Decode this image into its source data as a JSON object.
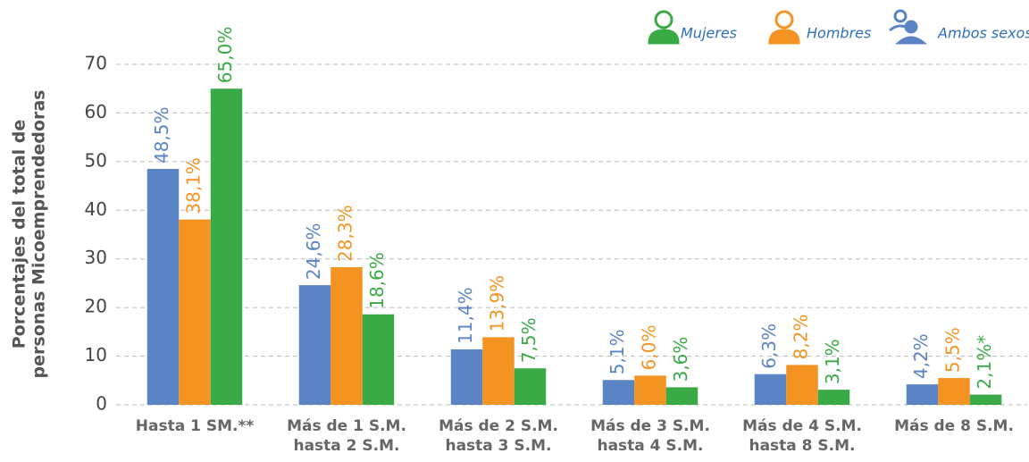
{
  "chart_data": {
    "type": "bar",
    "ylabel": [
      "Porcentajes del total de",
      "personas Micoemprendedoras"
    ],
    "categories": [
      "Hasta 1 SM.**",
      "Más de 1 S.M.\nhasta 2 S.M.",
      "Más de 2 S.M.\nhasta 3 S.M.",
      "Más de 3 S.M.\nhasta 4 S.M.",
      "Más de 4 S.M.\nhasta 8 S.M.",
      "Más de 8 S.M."
    ],
    "series": [
      {
        "name": "Ambos sexos",
        "color": "#5b84c4",
        "values": [
          48.5,
          24.6,
          11.4,
          5.1,
          6.3,
          4.2
        ],
        "value_labels": [
          "48,5%",
          "24,6%",
          "11,4%",
          "5,1%",
          "6,3%",
          "4,2%"
        ]
      },
      {
        "name": "Hombres",
        "color": "#f39422",
        "values": [
          38.1,
          28.3,
          13.9,
          6.0,
          8.2,
          5.5
        ],
        "value_labels": [
          "38,1%",
          "28,3%",
          "13,9%",
          "6,0%",
          "8,2%",
          "5,5%"
        ]
      },
      {
        "name": "Mujeres",
        "color": "#3aaa47",
        "values": [
          65.0,
          18.6,
          7.5,
          3.6,
          3.1,
          2.1
        ],
        "value_labels": [
          "65,0%",
          "18,6%",
          "7,5%",
          "3,6%",
          "3,1%",
          "2,1%*"
        ]
      }
    ],
    "ylim": [
      0,
      70
    ],
    "yticks": [
      0,
      10,
      20,
      30,
      40,
      50,
      60,
      70
    ],
    "grid": true,
    "legend": "top-right"
  }
}
